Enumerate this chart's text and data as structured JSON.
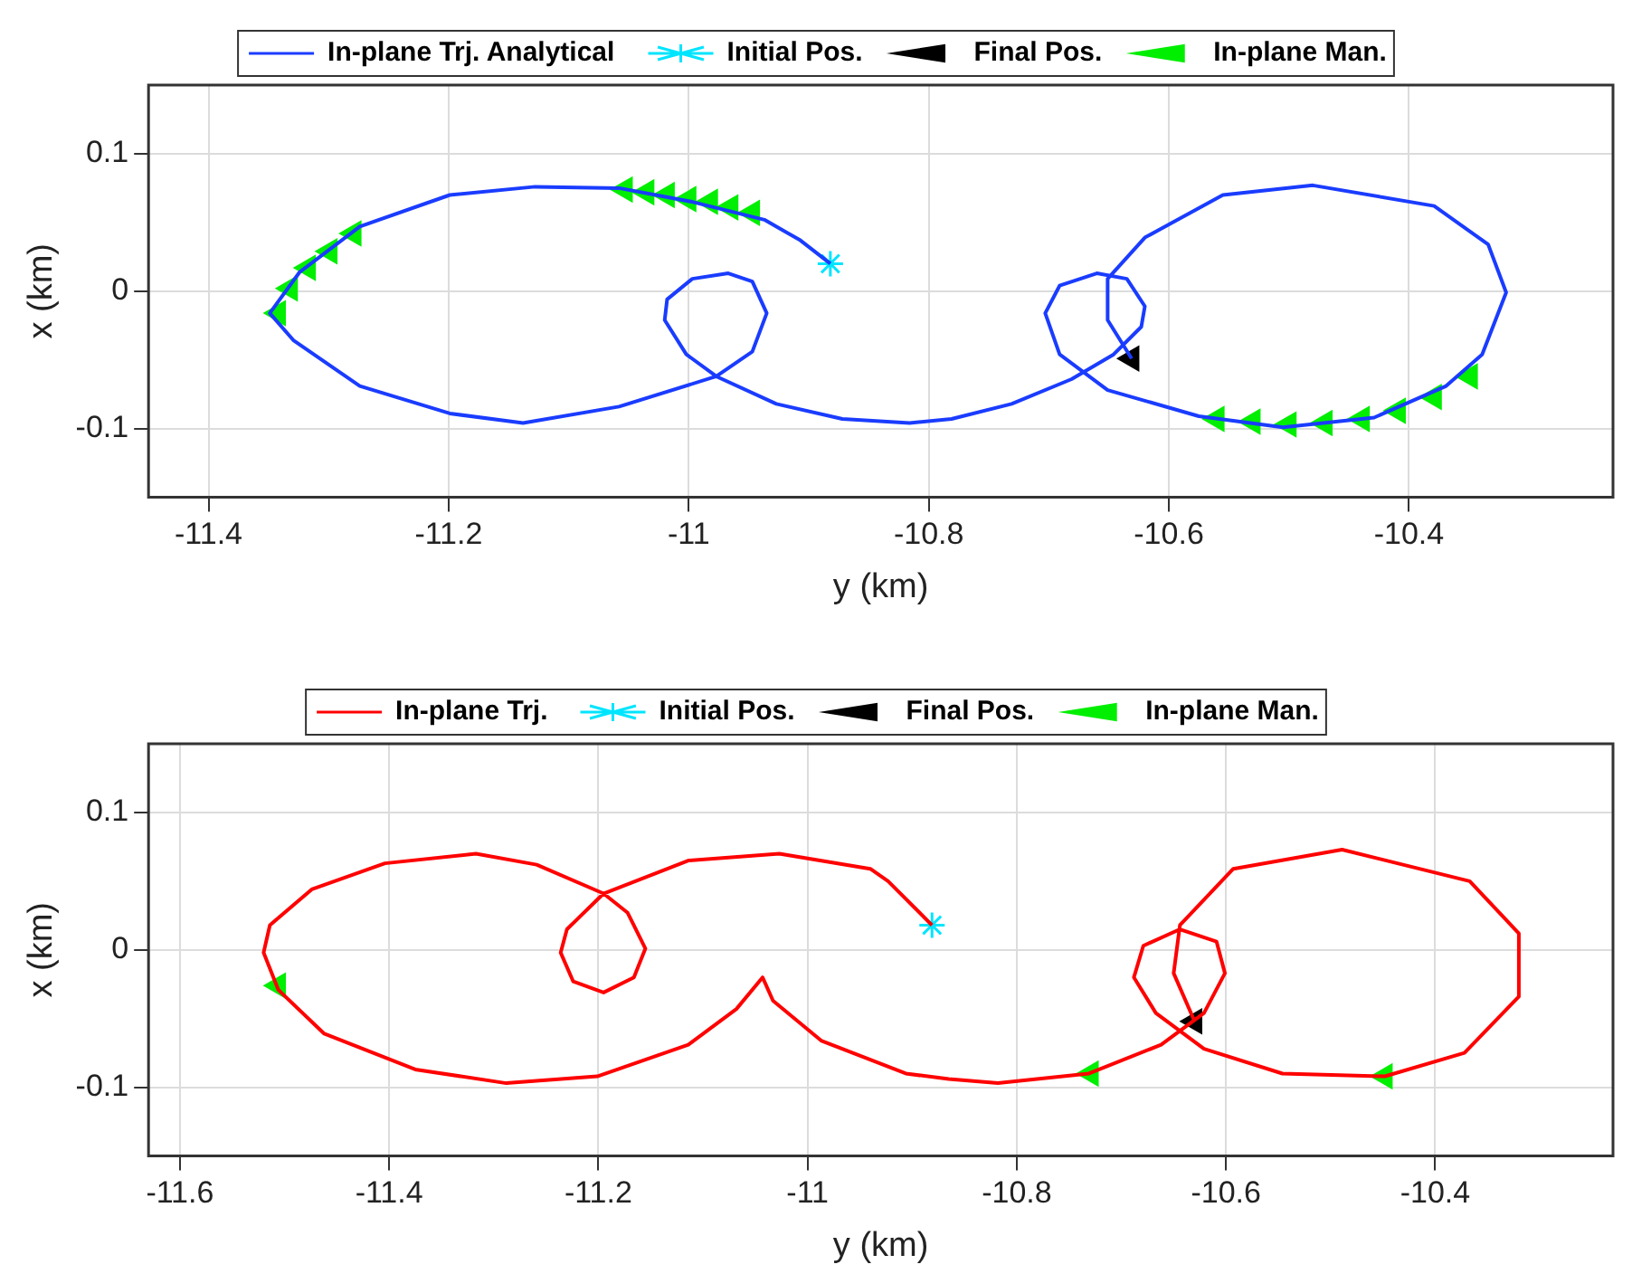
{
  "chart_data": [
    {
      "type": "line",
      "xlabel": "y (km)",
      "ylabel": "x (km)",
      "xlim": [
        -11.45,
        -10.23
      ],
      "xticks": [
        -11.4,
        -11.2,
        -11,
        -10.8,
        -10.6,
        -10.4
      ],
      "ylim": [
        -0.15,
        0.15
      ],
      "yticks": [
        -0.1,
        0,
        0.1
      ],
      "grid": true,
      "legend": "top",
      "series": [
        {
          "name": "In-plane Trj. Analytical",
          "color": "#1a3cff",
          "marker": "none",
          "x": [
            -10.882,
            -10.907,
            -10.937,
            -10.997,
            -11.058,
            -11.128,
            -11.199,
            -11.274,
            -11.324,
            -11.349,
            -11.329,
            -11.274,
            -11.199,
            -11.138,
            -11.058,
            -10.977,
            -10.947,
            -10.935,
            -10.947,
            -10.967,
            -10.997,
            -11.018,
            -11.02,
            -11.002,
            -10.977,
            -10.927,
            -10.872,
            -10.816,
            -10.781,
            -10.731,
            -10.681,
            -10.646,
            -10.623,
            -10.62,
            -10.635,
            -10.66,
            -10.691,
            -10.703,
            -10.691,
            -10.651,
            -10.575,
            -10.505,
            -10.429,
            -10.369,
            -10.339,
            -10.319,
            -10.334,
            -10.379,
            -10.48,
            -10.555,
            -10.62,
            -10.651,
            -10.651,
            -10.631
          ],
          "values": [
            0.02,
            0.037,
            0.052,
            0.065,
            0.075,
            0.076,
            0.07,
            0.047,
            0.014,
            -0.016,
            -0.036,
            -0.069,
            -0.089,
            -0.096,
            -0.084,
            -0.062,
            -0.044,
            -0.016,
            0.007,
            0.013,
            0.009,
            -0.006,
            -0.021,
            -0.046,
            -0.062,
            -0.082,
            -0.093,
            -0.096,
            -0.093,
            -0.082,
            -0.064,
            -0.046,
            -0.026,
            -0.011,
            0.009,
            0.013,
            0.004,
            -0.016,
            -0.046,
            -0.072,
            -0.091,
            -0.099,
            -0.092,
            -0.069,
            -0.046,
            -0.001,
            0.034,
            0.062,
            0.077,
            0.07,
            0.039,
            0.009,
            -0.021,
            -0.049
          ]
        },
        {
          "name": "Initial Pos.",
          "type": "scatter",
          "color": "#00e5ff",
          "marker": "cross",
          "x": [
            -10.882
          ],
          "values": [
            0.02
          ]
        },
        {
          "name": "Final Pos.",
          "type": "scatter",
          "color": "#000000",
          "marker": "triangle",
          "x": [
            -10.631
          ],
          "values": [
            -0.049
          ]
        },
        {
          "name": "In-plane Man.",
          "type": "scatter",
          "color": "#00ee00",
          "marker": "triangle",
          "x": [
            -11.053,
            -11.035,
            -11.018,
            -11.0,
            -10.982,
            -10.965,
            -10.947,
            -11.279,
            -11.299,
            -11.317,
            -11.332,
            -11.342,
            -10.56,
            -10.53,
            -10.5,
            -10.47,
            -10.439,
            -10.409,
            -10.379,
            -10.349
          ],
          "values": [
            0.074,
            0.072,
            0.07,
            0.067,
            0.065,
            0.061,
            0.057,
            0.042,
            0.029,
            0.017,
            0.002,
            -0.016,
            -0.093,
            -0.095,
            -0.097,
            -0.096,
            -0.093,
            -0.087,
            -0.077,
            -0.062
          ]
        }
      ]
    },
    {
      "type": "line",
      "xlabel": "y (km)",
      "ylabel": "x (km)",
      "xlim": [
        -11.63,
        -10.23
      ],
      "xticks": [
        -11.6,
        -11.4,
        -11.2,
        -11,
        -10.8,
        -10.6,
        -10.4
      ],
      "ylim": [
        -0.15,
        0.15
      ],
      "yticks": [
        -0.1,
        0,
        0.1
      ],
      "grid": true,
      "legend": "top",
      "series": [
        {
          "name": "In-plane Trj.",
          "color": "#ff0000",
          "marker": "none",
          "x": [
            -10.881,
            -10.923,
            -10.94,
            -11.027,
            -11.114,
            -11.195,
            -11.23,
            -11.236,
            -11.224,
            -11.195,
            -11.166,
            -11.155,
            -11.172,
            -11.195,
            -11.259,
            -11.317,
            -11.404,
            -11.474,
            -11.514,
            -11.52,
            -11.506,
            -11.462,
            -11.375,
            -11.288,
            -11.201,
            -11.114,
            -11.068,
            -11.043,
            -11.033,
            -10.987,
            -10.906,
            -10.865,
            -10.818,
            -10.731,
            -10.662,
            -10.621,
            -10.601,
            -10.609,
            -10.644,
            -10.679,
            -10.688,
            -10.667,
            -10.621,
            -10.546,
            -10.448,
            -10.372,
            -10.32,
            -10.32,
            -10.367,
            -10.489,
            -10.593,
            -10.644,
            -10.65,
            -10.63
          ],
          "values": [
            0.018,
            0.05,
            0.059,
            0.07,
            0.065,
            0.041,
            0.015,
            -0.002,
            -0.023,
            -0.031,
            -0.02,
            0.001,
            0.027,
            0.041,
            0.062,
            0.07,
            0.063,
            0.044,
            0.018,
            -0.002,
            -0.029,
            -0.061,
            -0.087,
            -0.097,
            -0.092,
            -0.069,
            -0.043,
            -0.02,
            -0.037,
            -0.066,
            -0.09,
            -0.094,
            -0.097,
            -0.09,
            -0.069,
            -0.046,
            -0.017,
            0.006,
            0.015,
            0.003,
            -0.02,
            -0.046,
            -0.072,
            -0.09,
            -0.092,
            -0.075,
            -0.034,
            0.012,
            0.05,
            0.073,
            0.059,
            0.018,
            -0.017,
            -0.052
          ]
        },
        {
          "name": "Initial Pos.",
          "type": "scatter",
          "color": "#00e5ff",
          "marker": "cross",
          "x": [
            -10.881
          ],
          "values": [
            0.018
          ]
        },
        {
          "name": "Final Pos.",
          "type": "scatter",
          "color": "#000000",
          "marker": "triangle",
          "x": [
            -10.63
          ],
          "values": [
            -0.052
          ]
        },
        {
          "name": "In-plane Man.",
          "type": "scatter",
          "color": "#00ee00",
          "marker": "triangle",
          "x": [
            -11.506,
            -10.729,
            -10.448
          ],
          "values": [
            -0.026,
            -0.09,
            -0.092
          ]
        }
      ]
    }
  ]
}
